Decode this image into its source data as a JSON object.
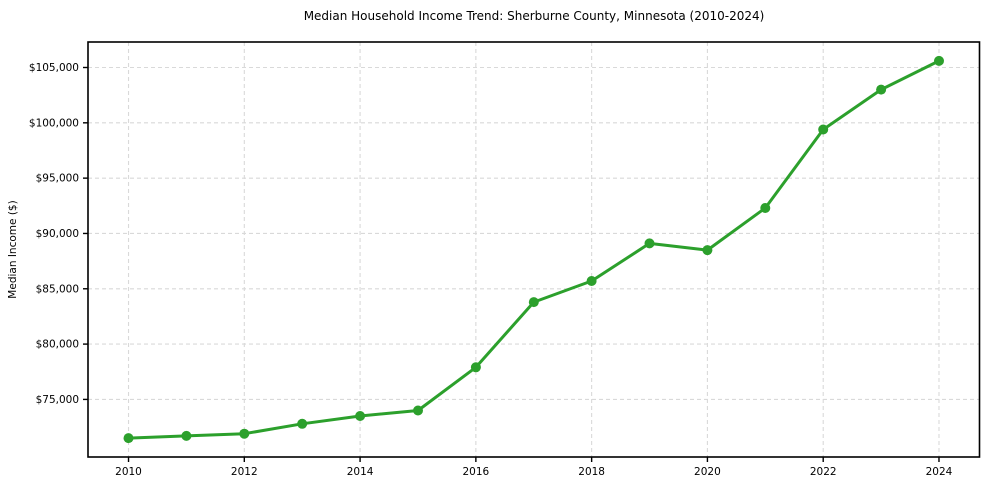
{
  "figure": {
    "title": "Median Household Income Trend: Sherburne County, Minnesota (2010-2024)"
  },
  "chart_data": {
    "type": "line",
    "title": "Median Household Income Trend: Sherburne County, Minnesota (2010-2024)",
    "xlabel": "",
    "ylabel": "Median Income ($)",
    "x": [
      2010,
      2011,
      2012,
      2013,
      2014,
      2015,
      2016,
      2017,
      2018,
      2019,
      2020,
      2021,
      2022,
      2023,
      2024
    ],
    "series": [
      {
        "name": "Median Household Income",
        "values": [
          71500,
          71700,
          71900,
          72800,
          73500,
          74000,
          77900,
          83800,
          85700,
          89100,
          88500,
          92300,
          99400,
          103000,
          105600
        ]
      }
    ],
    "xlim": [
      2009.3,
      2024.7
    ],
    "ylim": [
      69795,
      107305
    ],
    "xticks": [
      2010,
      2012,
      2014,
      2016,
      2018,
      2020,
      2022,
      2024
    ],
    "xtick_labels": [
      "2010",
      "2012",
      "2014",
      "2016",
      "2018",
      "2020",
      "2022",
      "2024"
    ],
    "yticks": [
      75000,
      80000,
      85000,
      90000,
      95000,
      100000,
      105000
    ],
    "ytick_labels": [
      "$75,000",
      "$80,000",
      "$85,000",
      "$90,000",
      "$95,000",
      "$100,000",
      "$105,000"
    ],
    "grid": true,
    "grid_style": "dashed",
    "legend": "none",
    "marker": "circle",
    "colors": {
      "line": "#2ca02c",
      "marker": "#2ca02c",
      "grid": "#d9d9d9",
      "spine": "#000000",
      "text": "#000000",
      "background": "#ffffff"
    }
  }
}
